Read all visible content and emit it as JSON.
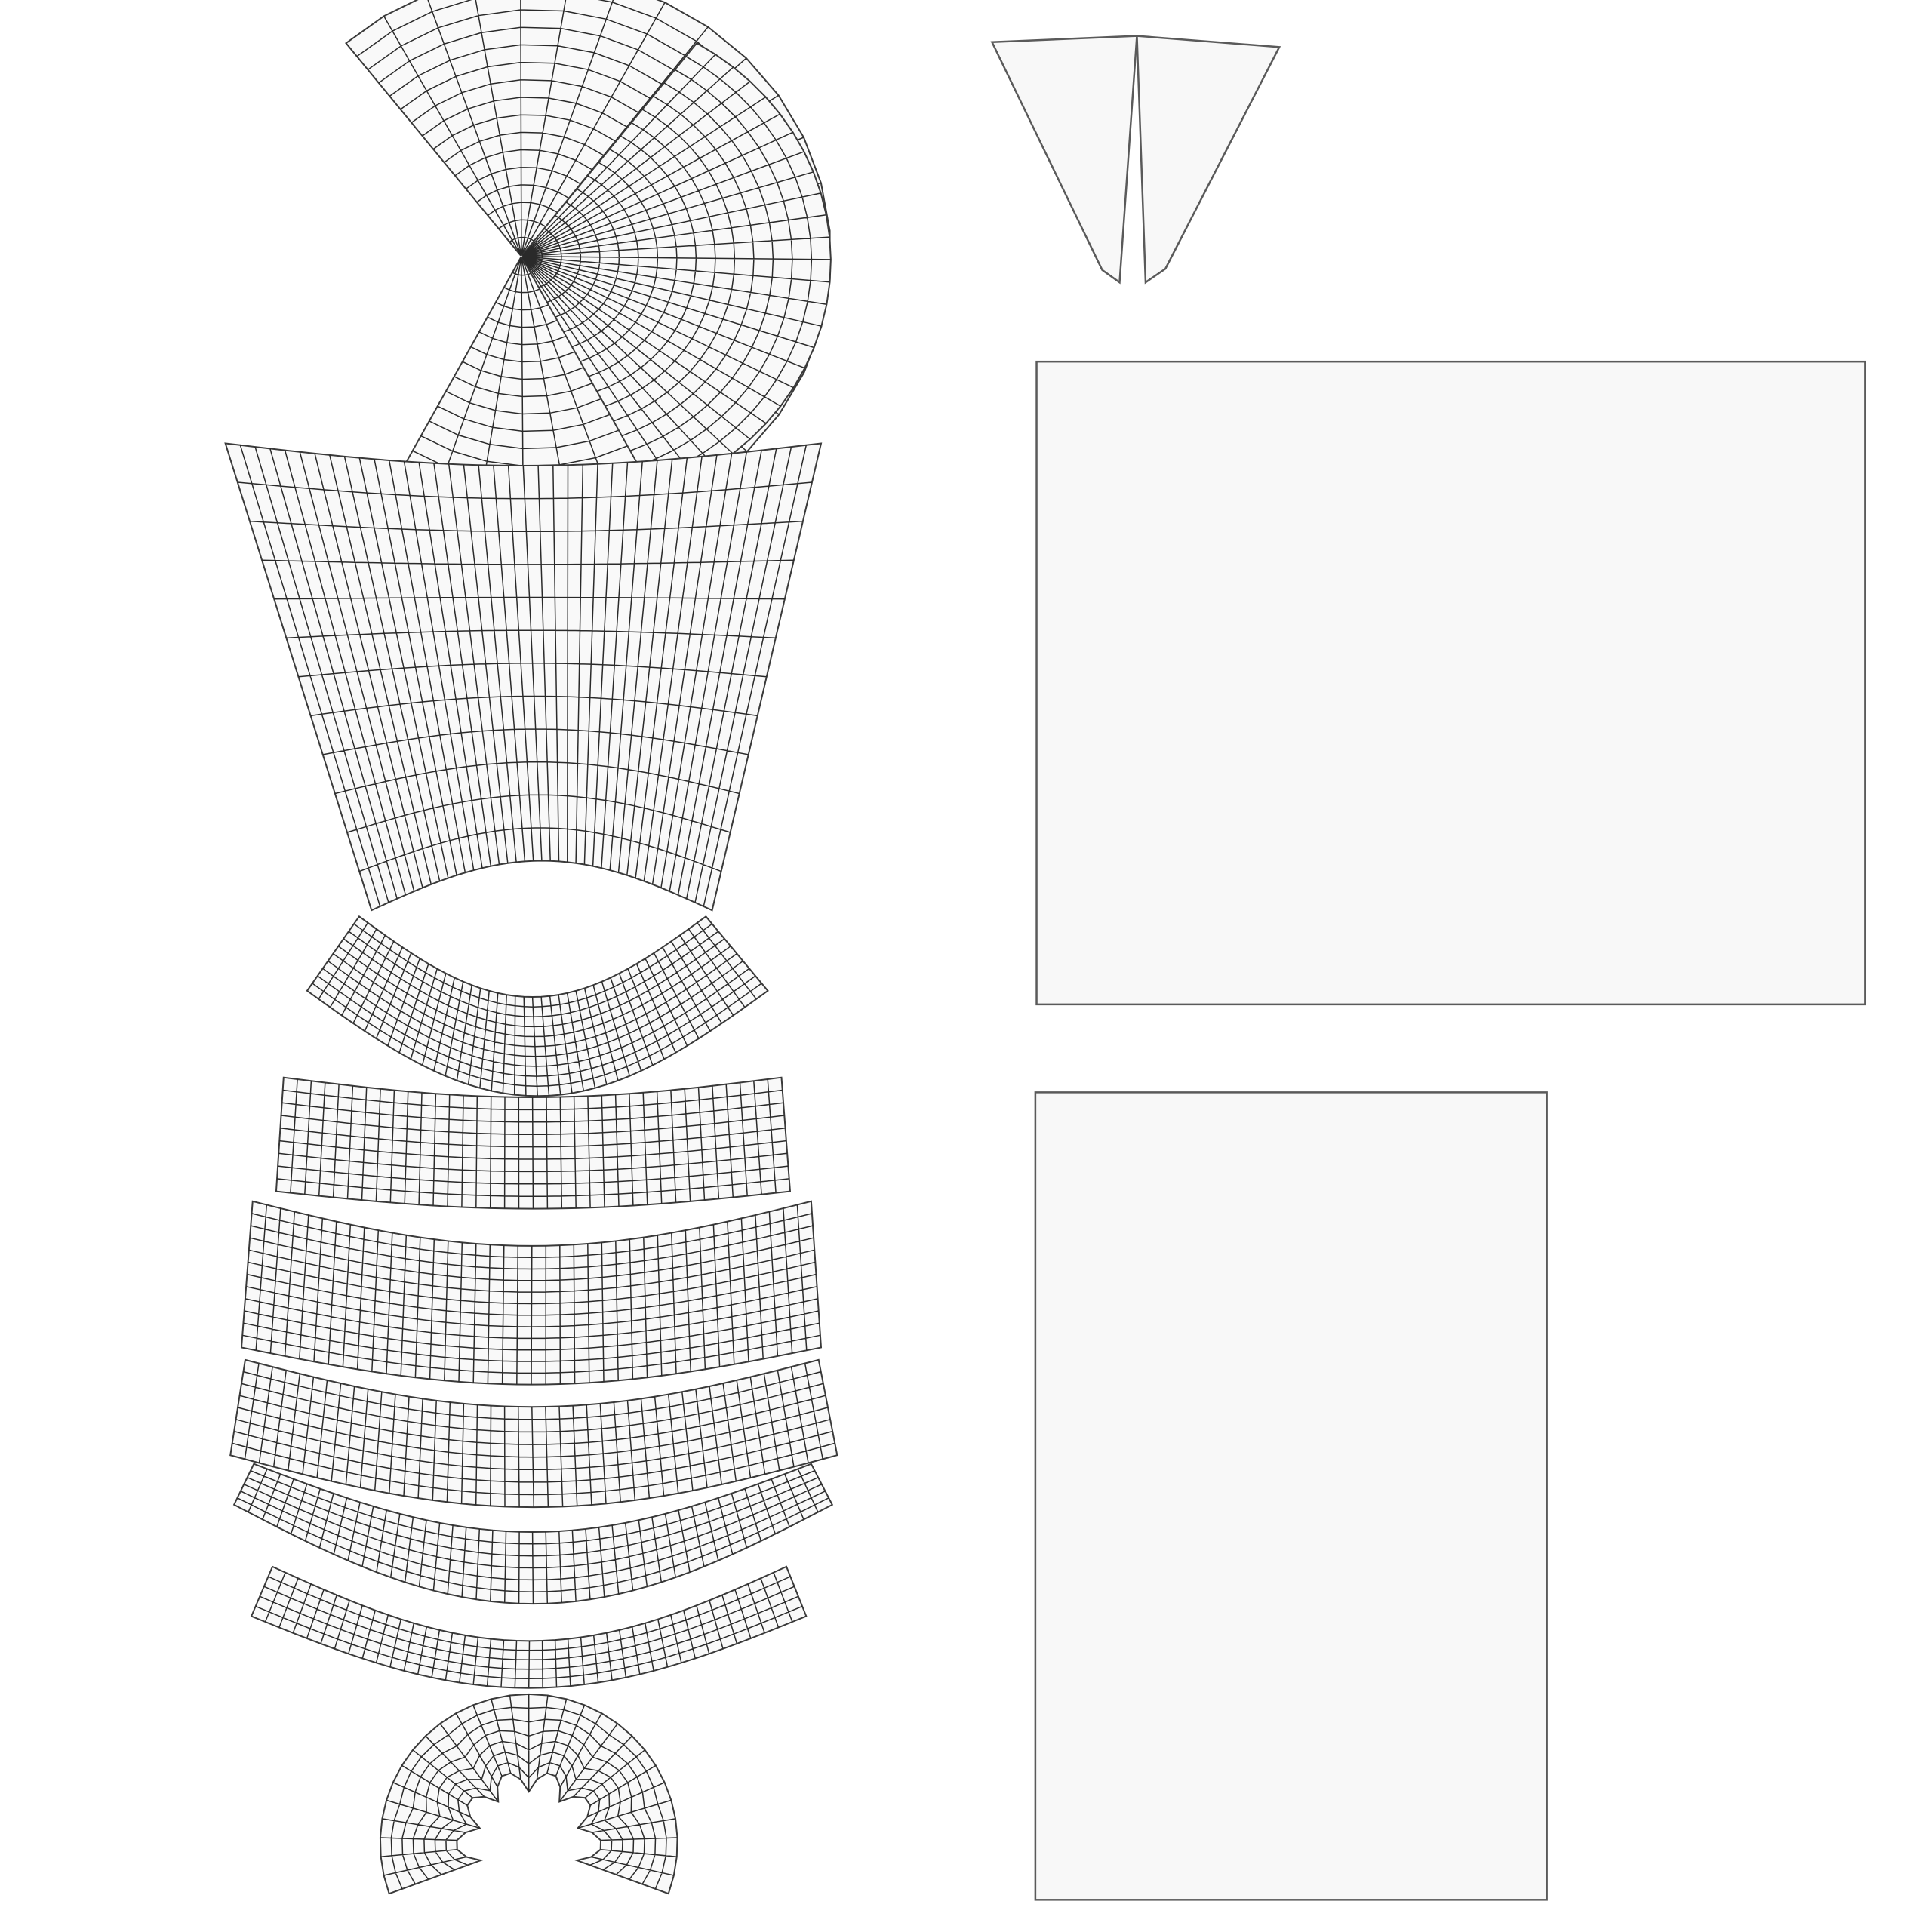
{
  "view": {
    "background_color": "#ffffff",
    "island_fill_color": "#f8f8f8",
    "mesh_line_color": "#2a2a2a",
    "outline_color": "#5a5a5a"
  },
  "islands": [
    {
      "id": "uv-island-neck-cup-left",
      "kind": "quad-grid"
    },
    {
      "id": "uv-island-neck-cup-right",
      "kind": "quad-grid"
    },
    {
      "id": "uv-island-torso-upper",
      "kind": "quad-grid"
    },
    {
      "id": "uv-island-torso-crescent",
      "kind": "quad-grid"
    },
    {
      "id": "uv-island-band-1",
      "kind": "quad-grid"
    },
    {
      "id": "uv-island-band-2",
      "kind": "quad-grid"
    },
    {
      "id": "uv-island-band-3",
      "kind": "quad-grid"
    },
    {
      "id": "uv-island-band-4",
      "kind": "quad-grid"
    },
    {
      "id": "uv-island-band-5",
      "kind": "quad-grid"
    },
    {
      "id": "uv-island-base-fan",
      "kind": "quad-grid"
    },
    {
      "id": "uv-island-spike",
      "kind": "flat"
    },
    {
      "id": "uv-island-rect-large",
      "kind": "flat"
    },
    {
      "id": "uv-island-rect-tall",
      "kind": "flat"
    }
  ]
}
